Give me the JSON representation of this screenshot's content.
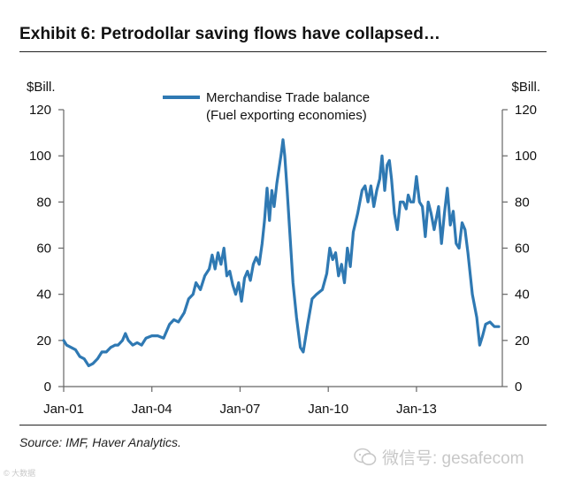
{
  "title": "Exhibit 6: Petrodollar saving flows have collapsed…",
  "source": "Source: IMF, Haver Analytics.",
  "watermark": "微信号: gesafecom",
  "corner_mark": "© 大数据",
  "colors": {
    "series": "#2f79b3",
    "axis": "#666666"
  },
  "chart_data": {
    "type": "line",
    "title": "Exhibit 6: Petrodollar saving flows have collapsed…",
    "ylabel_left": "$Bill.",
    "ylabel_right": "$Bill.",
    "ylim": [
      0,
      120
    ],
    "yticks": [
      0,
      20,
      40,
      60,
      80,
      100,
      120
    ],
    "xlim": [
      2001.0,
      2015.92
    ],
    "xticks": [
      {
        "value": 2001.0,
        "label": "Jan-01"
      },
      {
        "value": 2004.0,
        "label": "Jan-04"
      },
      {
        "value": 2007.0,
        "label": "Jan-07"
      },
      {
        "value": 2010.0,
        "label": "Jan-10"
      },
      {
        "value": 2013.0,
        "label": "Jan-13"
      }
    ],
    "legend": {
      "position": "top-center",
      "lines": [
        "Merchandise Trade balance",
        "(Fuel exporting economies)"
      ]
    },
    "series": [
      {
        "name": "Merchandise Trade balance (Fuel exporting economies)",
        "points": [
          [
            2001.0,
            20
          ],
          [
            2001.1,
            18
          ],
          [
            2001.25,
            17
          ],
          [
            2001.4,
            16
          ],
          [
            2001.55,
            13
          ],
          [
            2001.7,
            12
          ],
          [
            2001.85,
            9
          ],
          [
            2002.0,
            10
          ],
          [
            2002.15,
            12
          ],
          [
            2002.3,
            15
          ],
          [
            2002.45,
            15
          ],
          [
            2002.6,
            17
          ],
          [
            2002.75,
            18
          ],
          [
            2002.85,
            18
          ],
          [
            2003.0,
            20
          ],
          [
            2003.1,
            23
          ],
          [
            2003.2,
            20
          ],
          [
            2003.35,
            18
          ],
          [
            2003.5,
            19
          ],
          [
            2003.65,
            18
          ],
          [
            2003.8,
            21
          ],
          [
            2004.0,
            22
          ],
          [
            2004.2,
            22
          ],
          [
            2004.4,
            21
          ],
          [
            2004.6,
            27
          ],
          [
            2004.75,
            29
          ],
          [
            2004.9,
            28
          ],
          [
            2005.1,
            32
          ],
          [
            2005.25,
            38
          ],
          [
            2005.4,
            40
          ],
          [
            2005.5,
            45
          ],
          [
            2005.65,
            42
          ],
          [
            2005.8,
            48
          ],
          [
            2005.95,
            51
          ],
          [
            2006.05,
            57
          ],
          [
            2006.15,
            51
          ],
          [
            2006.25,
            58
          ],
          [
            2006.35,
            53
          ],
          [
            2006.45,
            60
          ],
          [
            2006.55,
            48
          ],
          [
            2006.65,
            50
          ],
          [
            2006.75,
            44
          ],
          [
            2006.85,
            40
          ],
          [
            2006.95,
            45
          ],
          [
            2007.05,
            37
          ],
          [
            2007.15,
            47
          ],
          [
            2007.25,
            50
          ],
          [
            2007.35,
            46
          ],
          [
            2007.45,
            53
          ],
          [
            2007.55,
            56
          ],
          [
            2007.65,
            53
          ],
          [
            2007.75,
            62
          ],
          [
            2007.83,
            72
          ],
          [
            2007.92,
            86
          ],
          [
            2008.0,
            72
          ],
          [
            2008.08,
            85
          ],
          [
            2008.16,
            78
          ],
          [
            2008.25,
            88
          ],
          [
            2008.33,
            95
          ],
          [
            2008.4,
            101
          ],
          [
            2008.46,
            107
          ],
          [
            2008.52,
            100
          ],
          [
            2008.6,
            85
          ],
          [
            2008.7,
            65
          ],
          [
            2008.8,
            45
          ],
          [
            2008.92,
            30
          ],
          [
            2009.05,
            17
          ],
          [
            2009.15,
            15
          ],
          [
            2009.3,
            27
          ],
          [
            2009.45,
            38
          ],
          [
            2009.6,
            40
          ],
          [
            2009.8,
            42
          ],
          [
            2009.95,
            49
          ],
          [
            2010.05,
            60
          ],
          [
            2010.15,
            55
          ],
          [
            2010.25,
            58
          ],
          [
            2010.35,
            48
          ],
          [
            2010.45,
            53
          ],
          [
            2010.55,
            45
          ],
          [
            2010.65,
            60
          ],
          [
            2010.75,
            52
          ],
          [
            2010.85,
            67
          ],
          [
            2011.0,
            75
          ],
          [
            2011.15,
            85
          ],
          [
            2011.25,
            87
          ],
          [
            2011.35,
            80
          ],
          [
            2011.45,
            87
          ],
          [
            2011.55,
            78
          ],
          [
            2011.65,
            85
          ],
          [
            2011.75,
            90
          ],
          [
            2011.83,
            100
          ],
          [
            2011.92,
            85
          ],
          [
            2012.0,
            96
          ],
          [
            2012.08,
            98
          ],
          [
            2012.15,
            90
          ],
          [
            2012.25,
            75
          ],
          [
            2012.35,
            68
          ],
          [
            2012.45,
            80
          ],
          [
            2012.55,
            80
          ],
          [
            2012.65,
            77
          ],
          [
            2012.72,
            83
          ],
          [
            2012.8,
            80
          ],
          [
            2012.9,
            80
          ],
          [
            2013.0,
            91
          ],
          [
            2013.1,
            80
          ],
          [
            2013.2,
            78
          ],
          [
            2013.3,
            65
          ],
          [
            2013.4,
            80
          ],
          [
            2013.5,
            75
          ],
          [
            2013.6,
            68
          ],
          [
            2013.75,
            78
          ],
          [
            2013.85,
            62
          ],
          [
            2013.95,
            75
          ],
          [
            2014.05,
            86
          ],
          [
            2014.15,
            70
          ],
          [
            2014.25,
            76
          ],
          [
            2014.35,
            62
          ],
          [
            2014.45,
            60
          ],
          [
            2014.55,
            71
          ],
          [
            2014.65,
            68
          ],
          [
            2014.75,
            58
          ],
          [
            2014.9,
            40
          ],
          [
            2015.05,
            30
          ],
          [
            2015.15,
            18
          ],
          [
            2015.25,
            22
          ],
          [
            2015.35,
            27
          ],
          [
            2015.5,
            28
          ],
          [
            2015.65,
            26
          ],
          [
            2015.8,
            26
          ]
        ]
      }
    ]
  }
}
